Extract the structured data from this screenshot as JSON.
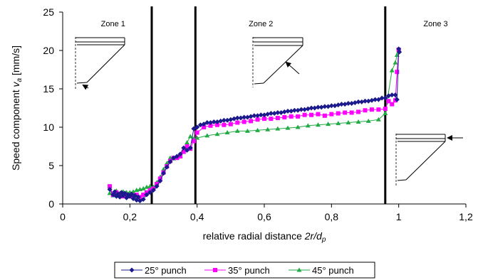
{
  "chart_data": {
    "type": "line",
    "title": "",
    "xlabel": "relative radial distance 2r/d_p",
    "xlabel_parts": {
      "plain": "relative radial distance ",
      "italic": "2r/d",
      "sub": "p"
    },
    "ylabel": "Speed component v_a [mm/s]",
    "ylabel_parts": {
      "plain": "Speed component ",
      "italic": "v",
      "sub": "a",
      "unit": " [mm/s]"
    },
    "xlim": [
      0,
      1.2
    ],
    "ylim": [
      0,
      25
    ],
    "xticks": [
      0,
      0.2,
      0.4,
      0.6,
      0.8,
      1,
      1.2
    ],
    "xtick_labels": [
      "0",
      "0,2",
      "0,4",
      "0,6",
      "0,8",
      "1",
      "1,2"
    ],
    "yticks": [
      0,
      5,
      10,
      15,
      20,
      25
    ],
    "ytick_labels": [
      "0",
      "5",
      "10",
      "15",
      "20",
      "25"
    ],
    "grid": false,
    "legend_position": "bottom",
    "zone_boundaries": [
      0.265,
      0.395,
      0.96
    ],
    "zones": [
      {
        "label": "Zone 1",
        "x": 0.15
      },
      {
        "label": "Zone 2",
        "x": 0.59
      },
      {
        "label": "Zone 3",
        "x": 1.11
      }
    ],
    "series": [
      {
        "name": "25° punch",
        "color": "#1a1a8c",
        "marker": "diamond",
        "x": [
          0.14,
          0.15,
          0.155,
          0.16,
          0.165,
          0.17,
          0.175,
          0.18,
          0.185,
          0.19,
          0.195,
          0.2,
          0.205,
          0.21,
          0.215,
          0.22,
          0.225,
          0.23,
          0.24,
          0.25,
          0.26,
          0.27,
          0.28,
          0.29,
          0.3,
          0.31,
          0.32,
          0.33,
          0.34,
          0.35,
          0.36,
          0.37,
          0.38,
          0.39,
          0.4,
          0.41,
          0.42,
          0.43,
          0.44,
          0.45,
          0.46,
          0.47,
          0.48,
          0.49,
          0.5,
          0.51,
          0.52,
          0.53,
          0.54,
          0.55,
          0.56,
          0.57,
          0.58,
          0.59,
          0.6,
          0.61,
          0.62,
          0.63,
          0.64,
          0.65,
          0.66,
          0.67,
          0.68,
          0.69,
          0.7,
          0.71,
          0.72,
          0.73,
          0.74,
          0.75,
          0.76,
          0.77,
          0.78,
          0.79,
          0.8,
          0.81,
          0.82,
          0.83,
          0.84,
          0.85,
          0.86,
          0.87,
          0.88,
          0.89,
          0.9,
          0.91,
          0.92,
          0.93,
          0.94,
          0.95,
          0.96,
          0.97,
          0.98,
          0.99,
          0.995,
          1.0,
          1.002
        ],
        "y": [
          1.9,
          1.2,
          1.6,
          1.0,
          1.3,
          0.9,
          1.5,
          1.1,
          1.4,
          0.8,
          1.2,
          1.0,
          1.3,
          0.7,
          1.1,
          0.5,
          0.9,
          0.4,
          0.6,
          1.2,
          1.5,
          1.8,
          2.3,
          3.0,
          4.0,
          4.8,
          5.5,
          6.0,
          6.2,
          6.5,
          7.3,
          7.0,
          7.3,
          9.8,
          10.0,
          10.3,
          10.4,
          10.6,
          10.6,
          10.7,
          10.7,
          10.8,
          10.9,
          10.9,
          11.0,
          11.1,
          11.2,
          11.2,
          11.3,
          11.3,
          11.4,
          11.5,
          11.5,
          11.6,
          11.6,
          11.7,
          11.8,
          11.8,
          11.9,
          11.9,
          12.0,
          12.1,
          12.1,
          12.2,
          12.2,
          12.3,
          12.3,
          12.4,
          12.5,
          12.5,
          12.6,
          12.6,
          12.7,
          12.7,
          12.8,
          12.8,
          12.9,
          13.0,
          13.0,
          13.1,
          13.1,
          13.2,
          13.3,
          13.3,
          13.4,
          13.4,
          13.5,
          13.6,
          13.6,
          13.8,
          13.8,
          14.1,
          14.2,
          14.2,
          13.6,
          20.2,
          19.8
        ]
      },
      {
        "name": "35° punch",
        "color": "#ff00ff",
        "marker": "square",
        "x": [
          0.14,
          0.15,
          0.16,
          0.17,
          0.18,
          0.19,
          0.2,
          0.21,
          0.22,
          0.23,
          0.24,
          0.25,
          0.26,
          0.27,
          0.28,
          0.29,
          0.3,
          0.31,
          0.32,
          0.33,
          0.34,
          0.35,
          0.36,
          0.37,
          0.38,
          0.39,
          0.4,
          0.42,
          0.44,
          0.46,
          0.48,
          0.5,
          0.52,
          0.54,
          0.56,
          0.58,
          0.6,
          0.62,
          0.64,
          0.66,
          0.68,
          0.7,
          0.72,
          0.74,
          0.76,
          0.78,
          0.8,
          0.82,
          0.84,
          0.86,
          0.88,
          0.9,
          0.92,
          0.94,
          0.96,
          0.97,
          0.98,
          0.99,
          0.995,
          1.0
        ],
        "y": [
          2.3,
          1.2,
          1.5,
          1.3,
          1.0,
          1.2,
          1.0,
          1.1,
          1.2,
          0.9,
          1.2,
          1.5,
          1.8,
          2.0,
          2.6,
          3.3,
          4.1,
          4.9,
          5.6,
          6.0,
          6.0,
          6.2,
          6.8,
          7.5,
          7.2,
          8.2,
          9.3,
          10.0,
          10.2,
          10.3,
          10.3,
          10.4,
          10.6,
          10.7,
          10.8,
          11.0,
          11.1,
          11.1,
          11.2,
          11.3,
          11.4,
          11.4,
          11.6,
          11.6,
          11.7,
          11.5,
          11.7,
          11.8,
          11.9,
          11.9,
          12.0,
          12.2,
          12.3,
          12.3,
          12.4,
          13.4,
          13.0,
          13.5,
          17.2,
          20.1
        ]
      },
      {
        "name": "45° punch",
        "color": "#22aa44",
        "marker": "triangle",
        "x": [
          0.14,
          0.15,
          0.16,
          0.17,
          0.18,
          0.19,
          0.2,
          0.21,
          0.22,
          0.23,
          0.24,
          0.25,
          0.26,
          0.27,
          0.28,
          0.29,
          0.3,
          0.31,
          0.32,
          0.33,
          0.34,
          0.35,
          0.36,
          0.37,
          0.38,
          0.39,
          0.4,
          0.43,
          0.46,
          0.49,
          0.52,
          0.55,
          0.58,
          0.61,
          0.64,
          0.67,
          0.7,
          0.73,
          0.76,
          0.79,
          0.82,
          0.85,
          0.88,
          0.91,
          0.94,
          0.96,
          0.98,
          0.99,
          0.995,
          1.0
        ],
        "y": [
          1.4,
          1.1,
          1.7,
          1.4,
          1.6,
          1.5,
          1.5,
          1.6,
          1.8,
          1.9,
          2.0,
          2.2,
          2.3,
          2.2,
          2.8,
          3.5,
          4.5,
          5.3,
          6.0,
          5.9,
          6.0,
          6.3,
          7.0,
          8.0,
          8.8,
          8.5,
          8.6,
          8.9,
          9.1,
          9.3,
          9.5,
          9.5,
          9.6,
          9.7,
          9.8,
          9.9,
          10.0,
          10.2,
          10.3,
          10.4,
          10.5,
          10.6,
          10.7,
          10.8,
          11.0,
          11.8,
          17.4,
          18.4,
          19.4,
          19.9
        ]
      }
    ]
  }
}
